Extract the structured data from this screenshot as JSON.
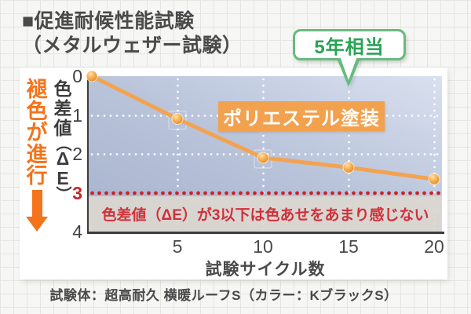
{
  "title": {
    "line1": "■促進耐候性能試験",
    "line2": "（メタルウェザー試験）"
  },
  "annotation_badge": {
    "label": "5年相当"
  },
  "series_badge": {
    "label": "ポリエステル塗装"
  },
  "fade_label": {
    "text": "褪色が進行",
    "chars": [
      "褪",
      "色",
      "が",
      "進",
      "行"
    ]
  },
  "caption": "試験体：超高耐久 横暖ルーフS（カラー：KブラックS）",
  "colors": {
    "accent_orange": "#f5731b",
    "line_orange": "#f3a34f",
    "badge_orange": "#f2a14f",
    "threshold_red": "#cb2127",
    "note_red": "#d03038",
    "green_text": "#2aa254",
    "green_border": "#66bb7e",
    "plot_dark": "#a7b2ce",
    "plot_light": "#d9e0ef",
    "band_gray": "#dcd7d1",
    "text_dark": "#4a4a4a"
  },
  "chart_data": {
    "type": "line",
    "title": "促進耐候性能試験（メタルウェザー試験）",
    "x": [
      0,
      5,
      10,
      15,
      20
    ],
    "x_tick_labels": [
      "5",
      "10",
      "15",
      "20"
    ],
    "y_ticks": [
      "0",
      "1",
      "2",
      "3",
      "4"
    ],
    "series": [
      {
        "name": "ポリエステル塗装",
        "values": [
          0,
          1.1,
          2.1,
          2.35,
          2.65
        ]
      }
    ],
    "xlabel": "試験サイクル数",
    "ylabel": "色差値（ΔE）",
    "ylabel_chars": [
      "色",
      "差",
      "値",
      "（",
      "Δ",
      "E",
      "）"
    ],
    "ylim": [
      0,
      4
    ],
    "y_inverted": true,
    "grid": true,
    "gridline_y_values": [
      1,
      2
    ],
    "threshold": 3,
    "threshold_note": "色差値（ΔE）が3以下は色あせをあまり感じない",
    "annotation": {
      "label": "5年相当",
      "points_at_x": 15
    },
    "legend_position": "badge-in-plot"
  }
}
